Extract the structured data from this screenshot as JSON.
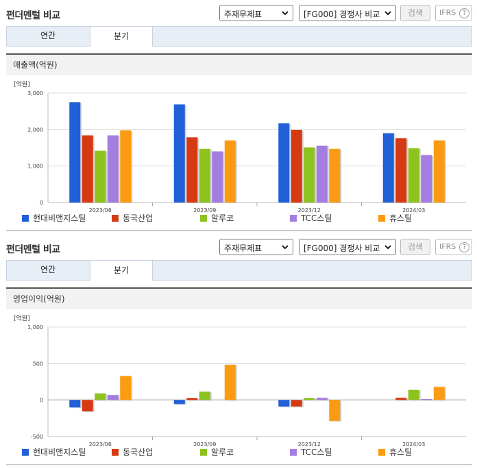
{
  "panels": [
    {
      "title": "펀더멘털 비교",
      "select1": "주재무제표",
      "select2": "[FG000] 경쟁사 비교",
      "search_label": "검색",
      "ifrs_label": "IFRS",
      "help_label": "?",
      "tabs": [
        "연간",
        "분기"
      ],
      "active_tab": "분기",
      "subtitle": "매출액(억원)"
    },
    {
      "title": "펀더멘털 비교",
      "select1": "주재무제표",
      "select2": "[FG000] 경쟁사 비교",
      "search_label": "검색",
      "ifrs_label": "IFRS",
      "help_label": "?",
      "tabs": [
        "연간",
        "분기"
      ],
      "active_tab": "분기",
      "subtitle": "영업이익(억원)"
    }
  ],
  "chart_data": [
    {
      "type": "bar",
      "title": "매출액(억원)",
      "unit": "[억원]",
      "categories": [
        "2023/06",
        "2023/09",
        "2023/12",
        "2024/03"
      ],
      "ylim": [
        0,
        3000
      ],
      "yticks": [
        0,
        1000,
        2000,
        3000
      ],
      "ytick_labels": [
        "0",
        "1,000",
        "2,000",
        "3,000"
      ],
      "grid": true,
      "legend": "bottom",
      "series": [
        {
          "name": "현대비앤지스틸",
          "color": "#2160d8",
          "values": [
            2750,
            2690,
            2170,
            1900
          ]
        },
        {
          "name": "동국산업",
          "color": "#d63a12",
          "values": [
            1840,
            1790,
            1990,
            1760
          ]
        },
        {
          "name": "알루코",
          "color": "#8dc21f",
          "values": [
            1420,
            1470,
            1510,
            1490
          ]
        },
        {
          "name": "TCC스틸",
          "color": "#a47de0",
          "values": [
            1840,
            1400,
            1560,
            1300
          ]
        },
        {
          "name": "휴스틸",
          "color": "#fb9b12",
          "values": [
            1980,
            1700,
            1470,
            1700
          ]
        }
      ]
    },
    {
      "type": "bar",
      "title": "영업이익(억원)",
      "unit": "[억원]",
      "categories": [
        "2023/06",
        "2023/09",
        "2023/12",
        "2024/03"
      ],
      "ylim": [
        -500,
        1000
      ],
      "yticks": [
        -500,
        0,
        500,
        1000
      ],
      "ytick_labels": [
        "-500",
        "0",
        "500",
        "1,000"
      ],
      "grid": true,
      "legend": "bottom",
      "series": [
        {
          "name": "현대비앤지스틸",
          "color": "#2160d8",
          "values": [
            -100,
            -55,
            -90,
            0
          ]
        },
        {
          "name": "동국산업",
          "color": "#d63a12",
          "values": [
            -155,
            25,
            -90,
            30
          ]
        },
        {
          "name": "알루코",
          "color": "#8dc21f",
          "values": [
            90,
            115,
            25,
            140
          ]
        },
        {
          "name": "TCC스틸",
          "color": "#a47de0",
          "values": [
            70,
            0,
            30,
            15
          ]
        },
        {
          "name": "휴스틸",
          "color": "#fb9b12",
          "values": [
            330,
            485,
            -285,
            180
          ]
        }
      ]
    }
  ]
}
